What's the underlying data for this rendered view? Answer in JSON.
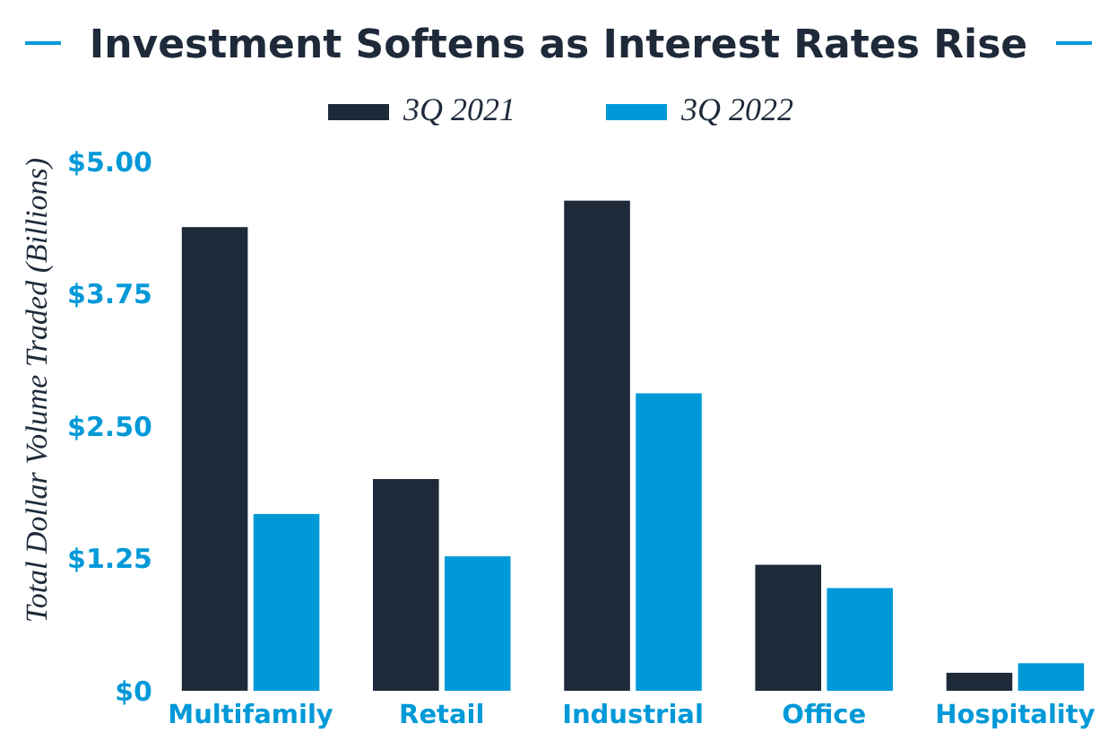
{
  "chart_data": {
    "type": "bar",
    "title": "Investment Softens as Interest Rates Rise",
    "ylabel": "Total Dollar Volume Traded  (Billions)",
    "categories": [
      "Multifamily",
      "Retail",
      "Industrial",
      "Office",
      "Hospitality"
    ],
    "series": [
      {
        "name": "3Q 2021",
        "color": "#1e2a3a",
        "values": [
          4.38,
          2.0,
          4.63,
          1.19,
          0.17
        ]
      },
      {
        "name": "3Q 2022",
        "color": "#0099d8",
        "values": [
          1.67,
          1.27,
          2.81,
          0.97,
          0.26
        ]
      }
    ],
    "ylim": [
      0,
      5
    ],
    "yticks": [
      {
        "value": 0,
        "label": "$0"
      },
      {
        "value": 1.25,
        "label": "$1.25"
      },
      {
        "value": 2.5,
        "label": "$2.50"
      },
      {
        "value": 3.75,
        "label": "$3.75"
      },
      {
        "value": 5,
        "label": "$5.00"
      }
    ],
    "grid": false,
    "legend": "top"
  }
}
